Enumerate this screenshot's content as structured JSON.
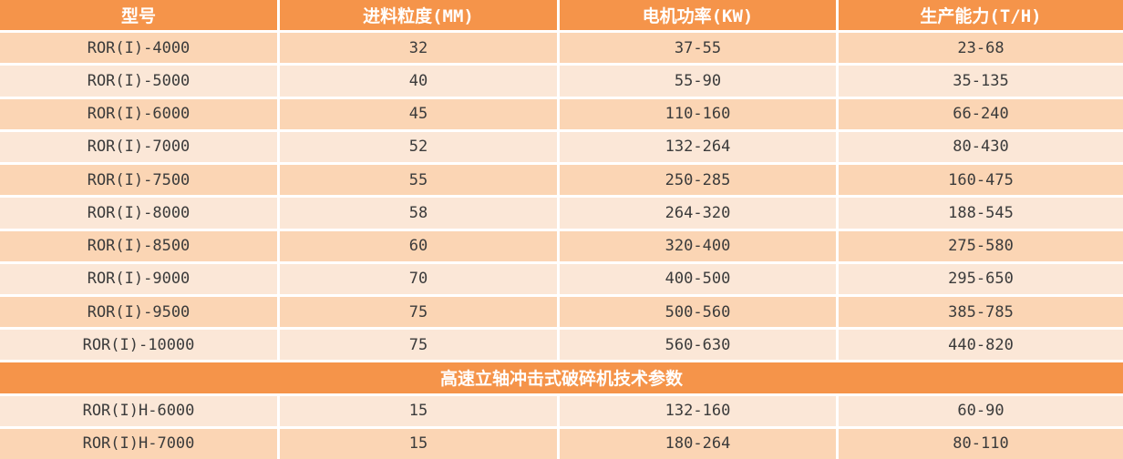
{
  "palette": {
    "header_bg": "#F5944A",
    "row_dark_bg": "#FBD5B4",
    "row_light_bg": "#FBE7D7",
    "divider": "#FFFFFF",
    "header_text": "#FFFFFF",
    "body_text": "#3B3B3B"
  },
  "table": {
    "columns": [
      {
        "label": "型号"
      },
      {
        "label": "进料粒度(MM)"
      },
      {
        "label": "电机功率(KW)"
      },
      {
        "label": "生产能力(T/H)"
      }
    ],
    "sections": [
      {
        "header": null,
        "first_row_shade": "dark",
        "rows": [
          [
            "ROR(I)-4000",
            "32",
            "37-55",
            "23-68"
          ],
          [
            "ROR(I)-5000",
            "40",
            "55-90",
            "35-135"
          ],
          [
            "ROR(I)-6000",
            "45",
            "110-160",
            "66-240"
          ],
          [
            "ROR(I)-7000",
            "52",
            "132-264",
            "80-430"
          ],
          [
            "ROR(I)-7500",
            "55",
            "250-285",
            "160-475"
          ],
          [
            "ROR(I)-8000",
            "58",
            "264-320",
            "188-545"
          ],
          [
            "ROR(I)-8500",
            "60",
            "320-400",
            "275-580"
          ],
          [
            "ROR(I)-9000",
            "70",
            "400-500",
            "295-650"
          ],
          [
            "ROR(I)-9500",
            "75",
            "500-560",
            "385-785"
          ],
          [
            "ROR(I)-10000",
            "75",
            "560-630",
            "440-820"
          ]
        ]
      },
      {
        "header": "高速立轴冲击式破碎机技术参数",
        "first_row_shade": "light",
        "rows": [
          [
            "ROR(I)H-6000",
            "15",
            "132-160",
            "60-90"
          ],
          [
            "ROR(I)H-7000",
            "15",
            "180-264",
            "80-110"
          ]
        ]
      }
    ]
  },
  "chart_data": {
    "type": "table",
    "columns": [
      "型号",
      "进料粒度(MM)",
      "电机功率(KW)",
      "生产能力(T/H)"
    ],
    "rows": [
      [
        "ROR(I)-4000",
        "32",
        "37-55",
        "23-68"
      ],
      [
        "ROR(I)-5000",
        "40",
        "55-90",
        "35-135"
      ],
      [
        "ROR(I)-6000",
        "45",
        "110-160",
        "66-240"
      ],
      [
        "ROR(I)-7000",
        "52",
        "132-264",
        "80-430"
      ],
      [
        "ROR(I)-7500",
        "55",
        "250-285",
        "160-475"
      ],
      [
        "ROR(I)-8000",
        "58",
        "264-320",
        "188-545"
      ],
      [
        "ROR(I)-8500",
        "60",
        "320-400",
        "275-580"
      ],
      [
        "ROR(I)-9000",
        "70",
        "400-500",
        "295-650"
      ],
      [
        "ROR(I)-9500",
        "75",
        "500-560",
        "385-785"
      ],
      [
        "ROR(I)-10000",
        "75",
        "560-630",
        "440-820"
      ],
      [
        "ROR(I)H-6000",
        "15",
        "132-160",
        "60-90"
      ],
      [
        "ROR(I)H-7000",
        "15",
        "180-264",
        "80-110"
      ]
    ],
    "section_header": {
      "after_row_index": 9,
      "label": "高速立轴冲击式破碎机技术参数"
    }
  }
}
